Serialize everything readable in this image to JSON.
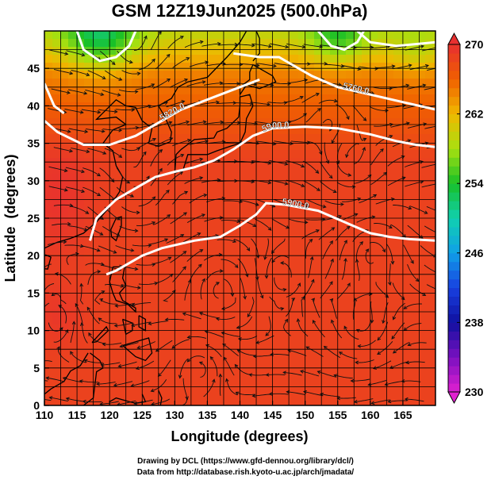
{
  "chart_data": {
    "type": "heatmap",
    "title": "GSM 12Z19Jun2025 (500.0hPa)",
    "xlabel": "Longitude (degrees)",
    "ylabel": "Latitude  (degrees)",
    "xlim": [
      110,
      170
    ],
    "ylim": [
      0,
      50
    ],
    "xticks": [
      110,
      115,
      120,
      125,
      130,
      135,
      140,
      145,
      150,
      155,
      160,
      165
    ],
    "yticks": [
      0,
      5,
      10,
      15,
      20,
      25,
      30,
      35,
      40,
      45
    ],
    "grid": true,
    "colorbar": {
      "min": 230,
      "max": 270,
      "ticks": [
        230,
        238,
        246,
        254,
        262,
        270
      ],
      "stops": [
        {
          "v": 230,
          "c": "#e020d0"
        },
        {
          "v": 234,
          "c": "#7a10c0"
        },
        {
          "v": 238,
          "c": "#1010a0"
        },
        {
          "v": 242,
          "c": "#1840e0"
        },
        {
          "v": 246,
          "c": "#10a0e8"
        },
        {
          "v": 250,
          "c": "#10d0b0"
        },
        {
          "v": 254,
          "c": "#18c028"
        },
        {
          "v": 258,
          "c": "#a8e010"
        },
        {
          "v": 262,
          "c": "#f0b800"
        },
        {
          "v": 266,
          "c": "#f06000"
        },
        {
          "v": 270,
          "c": "#e83030"
        }
      ]
    },
    "contours": [
      {
        "label": "5900.0",
        "points": [
          [
            119.5,
            17.5
          ],
          [
            121,
            18
          ],
          [
            125,
            20
          ],
          [
            128,
            21
          ],
          [
            133,
            22
          ],
          [
            137,
            22.5
          ],
          [
            140,
            24
          ],
          [
            142.5,
            25.5
          ],
          [
            144,
            27
          ],
          [
            147,
            26.8
          ],
          [
            152,
            26
          ],
          [
            156,
            24.5
          ],
          [
            160,
            23
          ],
          [
            163,
            22.5
          ],
          [
            166,
            22.2
          ],
          [
            170,
            22
          ]
        ]
      },
      {
        "label": "5900.0",
        "points": [
          [
            117,
            22
          ],
          [
            118,
            25
          ],
          [
            121,
            27.5
          ],
          [
            124,
            29
          ],
          [
            127,
            30.5
          ],
          [
            130,
            31.2
          ],
          [
            133,
            31.8
          ],
          [
            136,
            32.7
          ],
          [
            139,
            34.2
          ],
          [
            142,
            36
          ],
          [
            145,
            37
          ],
          [
            150,
            37.2
          ],
          [
            155,
            37
          ],
          [
            160,
            36.2
          ],
          [
            164,
            35.3
          ],
          [
            167,
            34.8
          ],
          [
            170,
            34.5
          ]
        ]
      },
      {
        "label": "5820.0",
        "points": [
          [
            110,
            38
          ],
          [
            112,
            36.5
          ],
          [
            116,
            34.8
          ],
          [
            120,
            34.8
          ],
          [
            124,
            36
          ],
          [
            128,
            38
          ],
          [
            131,
            39.5
          ],
          [
            134,
            40.5
          ],
          [
            137,
            41.5
          ],
          [
            140,
            42.5
          ],
          [
            143,
            43.5
          ]
        ]
      },
      {
        "label": "5760.0",
        "points": [
          [
            139,
            47
          ],
          [
            143,
            46.5
          ],
          [
            146,
            46.5
          ],
          [
            148,
            45.5
          ],
          [
            151,
            44
          ],
          [
            155,
            42.5
          ],
          [
            160,
            41.5
          ],
          [
            165,
            40.5
          ],
          [
            170,
            39.5
          ]
        ]
      },
      {
        "label": "",
        "points": [
          [
            110,
            43
          ],
          [
            111.5,
            40
          ],
          [
            113,
            39
          ]
        ]
      },
      {
        "label": "",
        "points": [
          [
            115,
            50
          ],
          [
            116,
            47.5
          ],
          [
            118.5,
            46
          ],
          [
            121,
            46.5
          ],
          [
            123,
            48
          ],
          [
            124,
            50
          ]
        ]
      },
      {
        "label": "",
        "points": [
          [
            152,
            50
          ],
          [
            154,
            48
          ],
          [
            156,
            47.5
          ],
          [
            158,
            48.5
          ],
          [
            159,
            50
          ]
        ]
      },
      {
        "label": "",
        "points": [
          [
            158,
            50
          ],
          [
            160,
            48.5
          ],
          [
            164,
            48
          ],
          [
            170,
            48.5
          ]
        ]
      }
    ]
  },
  "credits": {
    "line1": "Drawing by DCL (https://www.gfd-dennou.org/library/dcl/)",
    "line2": "Data from http://database.rish.kyoto-u.ac.jp/arch/jmadata/"
  }
}
